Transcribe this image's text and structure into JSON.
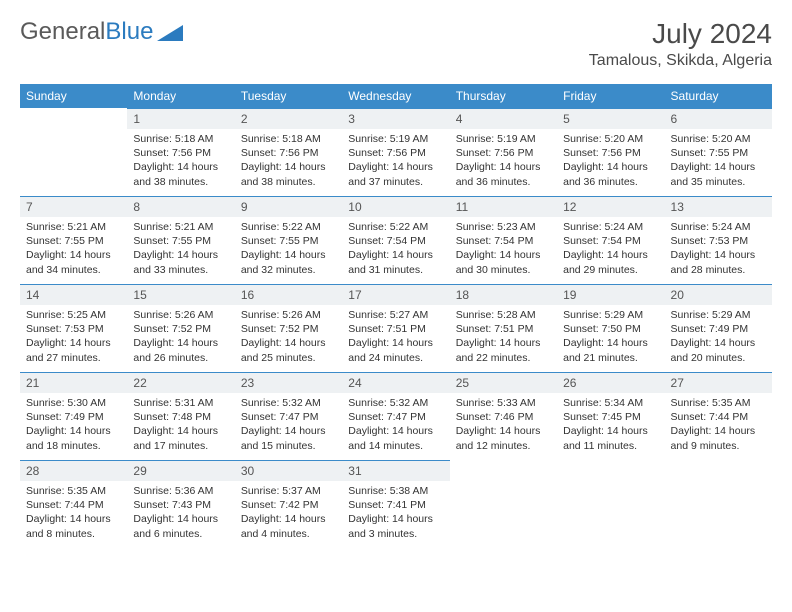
{
  "logo": {
    "part1": "General",
    "part2": "Blue"
  },
  "title": "July 2024",
  "location": "Tamalous, Skikda, Algeria",
  "colors": {
    "header_bg": "#3b8bc9",
    "header_text": "#ffffff",
    "daynum_bg": "#eef1f3",
    "border": "#3b8bc9",
    "logo_gray": "#5a5a5a",
    "logo_blue": "#2b7bbf"
  },
  "weekdays": [
    "Sunday",
    "Monday",
    "Tuesday",
    "Wednesday",
    "Thursday",
    "Friday",
    "Saturday"
  ],
  "weeks": [
    [
      null,
      {
        "n": "1",
        "sr": "5:18 AM",
        "ss": "7:56 PM",
        "dl": "14 hours and 38 minutes."
      },
      {
        "n": "2",
        "sr": "5:18 AM",
        "ss": "7:56 PM",
        "dl": "14 hours and 38 minutes."
      },
      {
        "n": "3",
        "sr": "5:19 AM",
        "ss": "7:56 PM",
        "dl": "14 hours and 37 minutes."
      },
      {
        "n": "4",
        "sr": "5:19 AM",
        "ss": "7:56 PM",
        "dl": "14 hours and 36 minutes."
      },
      {
        "n": "5",
        "sr": "5:20 AM",
        "ss": "7:56 PM",
        "dl": "14 hours and 36 minutes."
      },
      {
        "n": "6",
        "sr": "5:20 AM",
        "ss": "7:55 PM",
        "dl": "14 hours and 35 minutes."
      }
    ],
    [
      {
        "n": "7",
        "sr": "5:21 AM",
        "ss": "7:55 PM",
        "dl": "14 hours and 34 minutes."
      },
      {
        "n": "8",
        "sr": "5:21 AM",
        "ss": "7:55 PM",
        "dl": "14 hours and 33 minutes."
      },
      {
        "n": "9",
        "sr": "5:22 AM",
        "ss": "7:55 PM",
        "dl": "14 hours and 32 minutes."
      },
      {
        "n": "10",
        "sr": "5:22 AM",
        "ss": "7:54 PM",
        "dl": "14 hours and 31 minutes."
      },
      {
        "n": "11",
        "sr": "5:23 AM",
        "ss": "7:54 PM",
        "dl": "14 hours and 30 minutes."
      },
      {
        "n": "12",
        "sr": "5:24 AM",
        "ss": "7:54 PM",
        "dl": "14 hours and 29 minutes."
      },
      {
        "n": "13",
        "sr": "5:24 AM",
        "ss": "7:53 PM",
        "dl": "14 hours and 28 minutes."
      }
    ],
    [
      {
        "n": "14",
        "sr": "5:25 AM",
        "ss": "7:53 PM",
        "dl": "14 hours and 27 minutes."
      },
      {
        "n": "15",
        "sr": "5:26 AM",
        "ss": "7:52 PM",
        "dl": "14 hours and 26 minutes."
      },
      {
        "n": "16",
        "sr": "5:26 AM",
        "ss": "7:52 PM",
        "dl": "14 hours and 25 minutes."
      },
      {
        "n": "17",
        "sr": "5:27 AM",
        "ss": "7:51 PM",
        "dl": "14 hours and 24 minutes."
      },
      {
        "n": "18",
        "sr": "5:28 AM",
        "ss": "7:51 PM",
        "dl": "14 hours and 22 minutes."
      },
      {
        "n": "19",
        "sr": "5:29 AM",
        "ss": "7:50 PM",
        "dl": "14 hours and 21 minutes."
      },
      {
        "n": "20",
        "sr": "5:29 AM",
        "ss": "7:49 PM",
        "dl": "14 hours and 20 minutes."
      }
    ],
    [
      {
        "n": "21",
        "sr": "5:30 AM",
        "ss": "7:49 PM",
        "dl": "14 hours and 18 minutes."
      },
      {
        "n": "22",
        "sr": "5:31 AM",
        "ss": "7:48 PM",
        "dl": "14 hours and 17 minutes."
      },
      {
        "n": "23",
        "sr": "5:32 AM",
        "ss": "7:47 PM",
        "dl": "14 hours and 15 minutes."
      },
      {
        "n": "24",
        "sr": "5:32 AM",
        "ss": "7:47 PM",
        "dl": "14 hours and 14 minutes."
      },
      {
        "n": "25",
        "sr": "5:33 AM",
        "ss": "7:46 PM",
        "dl": "14 hours and 12 minutes."
      },
      {
        "n": "26",
        "sr": "5:34 AM",
        "ss": "7:45 PM",
        "dl": "14 hours and 11 minutes."
      },
      {
        "n": "27",
        "sr": "5:35 AM",
        "ss": "7:44 PM",
        "dl": "14 hours and 9 minutes."
      }
    ],
    [
      {
        "n": "28",
        "sr": "5:35 AM",
        "ss": "7:44 PM",
        "dl": "14 hours and 8 minutes."
      },
      {
        "n": "29",
        "sr": "5:36 AM",
        "ss": "7:43 PM",
        "dl": "14 hours and 6 minutes."
      },
      {
        "n": "30",
        "sr": "5:37 AM",
        "ss": "7:42 PM",
        "dl": "14 hours and 4 minutes."
      },
      {
        "n": "31",
        "sr": "5:38 AM",
        "ss": "7:41 PM",
        "dl": "14 hours and 3 minutes."
      },
      null,
      null,
      null
    ]
  ],
  "labels": {
    "sunrise": "Sunrise:",
    "sunset": "Sunset:",
    "daylight": "Daylight:"
  }
}
